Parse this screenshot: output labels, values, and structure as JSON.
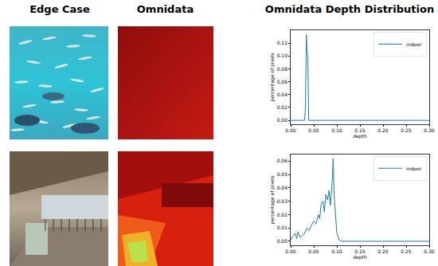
{
  "header": {
    "columns": [
      "Edge Case",
      "Omnidata",
      "Omnidata Depth Distribution"
    ]
  },
  "chart_data": [
    {
      "type": "line",
      "x": [
        0,
        0.01,
        0.02,
        0.03,
        0.032,
        0.034,
        0.035,
        0.036,
        0.037,
        0.038,
        0.039,
        0.05,
        0.1,
        0.2,
        0.3
      ],
      "series": [
        {
          "name": "indoor",
          "color": "#1f77b4",
          "values": [
            0,
            0,
            0,
            0,
            0.02,
            0.133,
            0.11,
            0.098,
            0.098,
            0.06,
            0,
            0,
            0,
            0,
            0
          ]
        }
      ],
      "xlim": [
        0,
        0.3
      ],
      "ylim": [
        -0.006,
        0.14
      ],
      "xticks": [
        {
          "value": 0,
          "label": "0.00"
        },
        {
          "value": 0.05,
          "label": "0.05"
        },
        {
          "value": 0.1,
          "label": "0.10"
        },
        {
          "value": 0.15,
          "label": "0.15"
        },
        {
          "value": 0.2,
          "label": "0.20"
        },
        {
          "value": 0.25,
          "label": "0.25"
        },
        {
          "value": 0.3,
          "label": "0.30"
        }
      ],
      "yticks": [
        {
          "value": 0,
          "label": "0.00"
        },
        {
          "value": 0.02,
          "label": "0.02"
        },
        {
          "value": 0.04,
          "label": "0.04"
        },
        {
          "value": 0.06,
          "label": "0.06"
        },
        {
          "value": 0.08,
          "label": "0.08"
        },
        {
          "value": 0.1,
          "label": "0.10"
        },
        {
          "value": 0.12,
          "label": "0.12"
        }
      ],
      "xlabel": "depth",
      "ylabel": "percentage of pixels",
      "legend": "upper right"
    },
    {
      "type": "line",
      "x": [
        0,
        0.005,
        0.01,
        0.013,
        0.016,
        0.02,
        0.025,
        0.03,
        0.035,
        0.04,
        0.045,
        0.05,
        0.055,
        0.06,
        0.063,
        0.066,
        0.07,
        0.073,
        0.076,
        0.08,
        0.083,
        0.086,
        0.09,
        0.092,
        0.094,
        0.097,
        0.1,
        0.105,
        0.11,
        0.2,
        0.3
      ],
      "series": [
        {
          "name": "indoor",
          "color": "#1f77b4",
          "values": [
            0.001,
            0.004,
            0.006,
            0.002,
            0.007,
            0.003,
            0.004,
            0.006,
            0.01,
            0.008,
            0.012,
            0.015,
            0.013,
            0.02,
            0.017,
            0.028,
            0.03,
            0.022,
            0.035,
            0.031,
            0.038,
            0.027,
            0.045,
            0.062,
            0.035,
            0.02,
            0.006,
            0.001,
            0,
            0,
            0
          ]
        }
      ],
      "xlim": [
        0,
        0.3
      ],
      "ylim": [
        -0.003,
        0.065
      ],
      "xticks": [
        {
          "value": 0,
          "label": "0.00"
        },
        {
          "value": 0.05,
          "label": "0.05"
        },
        {
          "value": 0.1,
          "label": "0.10"
        },
        {
          "value": 0.15,
          "label": "0.15"
        },
        {
          "value": 0.2,
          "label": "0.20"
        },
        {
          "value": 0.25,
          "label": "0.25"
        },
        {
          "value": 0.3,
          "label": "0.30"
        }
      ],
      "yticks": [
        {
          "value": 0,
          "label": "0.00"
        },
        {
          "value": 0.01,
          "label": "0.01"
        },
        {
          "value": 0.02,
          "label": "0.02"
        },
        {
          "value": 0.03,
          "label": "0.03"
        },
        {
          "value": 0.04,
          "label": "0.04"
        },
        {
          "value": 0.05,
          "label": "0.05"
        },
        {
          "value": 0.06,
          "label": "0.06"
        }
      ],
      "xlabel": "depth",
      "ylabel": "percentage of pixels",
      "legend": "upper right"
    }
  ]
}
